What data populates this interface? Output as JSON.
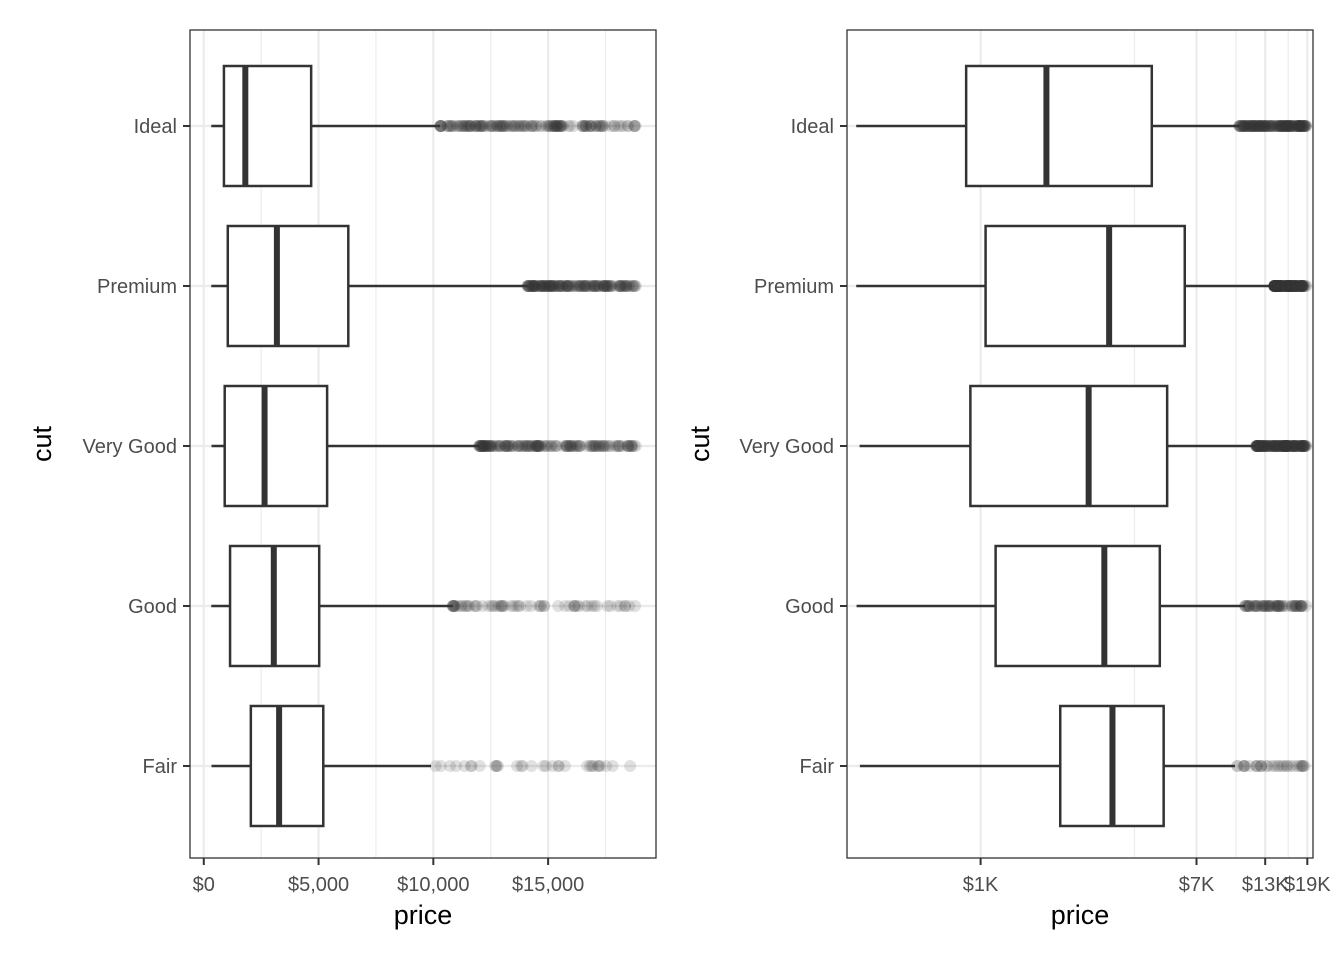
{
  "chart_data": [
    {
      "type": "boxplot",
      "orientation": "horizontal",
      "xlabel": "price",
      "ylabel": "cut",
      "x_scale": "linear",
      "xlim": [
        -600,
        19700
      ],
      "x_ticks": [
        0,
        5000,
        10000,
        15000
      ],
      "x_tick_labels": [
        "$0",
        "$5,000",
        "$10,000",
        "$15,000"
      ],
      "x_minor_ticks": [
        2500,
        7500,
        12500,
        17500
      ],
      "grid": true,
      "categories": [
        "Ideal",
        "Premium",
        "Very Good",
        "Good",
        "Fair"
      ],
      "boxes": [
        {
          "category": "Ideal",
          "min": 326,
          "q1": 878,
          "median": 1810,
          "q3": 4678,
          "max": 10300,
          "outliers_from": 10300,
          "outliers_to": 18806
        },
        {
          "category": "Premium",
          "min": 326,
          "q1": 1046,
          "median": 3185,
          "q3": 6296,
          "max": 14100,
          "outliers_from": 14100,
          "outliers_to": 18823
        },
        {
          "category": "Very Good",
          "min": 336,
          "q1": 912,
          "median": 2648,
          "q3": 5373,
          "max": 12000,
          "outliers_from": 12000,
          "outliers_to": 18818
        },
        {
          "category": "Good",
          "min": 327,
          "q1": 1145,
          "median": 3050,
          "q3": 5028,
          "max": 10850,
          "outliers_from": 10850,
          "outliers_to": 18788
        },
        {
          "category": "Fair",
          "min": 337,
          "q1": 2050,
          "median": 3282,
          "q3": 5206,
          "max": 9900,
          "outliers_from": 10100,
          "outliers_to": 18574
        }
      ]
    },
    {
      "type": "boxplot",
      "orientation": "horizontal",
      "xlabel": "price",
      "ylabel": "cut",
      "x_scale": "log10",
      "xlim": [
        300,
        20000
      ],
      "x_ticks": [
        1000,
        7000,
        13000,
        19000
      ],
      "x_tick_labels": [
        "$1K",
        "$7K",
        "$13K",
        "$19K"
      ],
      "x_minor_ticks": [
        4000,
        10000,
        16000
      ],
      "grid": true,
      "categories": [
        "Ideal",
        "Premium",
        "Very Good",
        "Good",
        "Fair"
      ],
      "boxes": [
        {
          "category": "Ideal",
          "min": 326,
          "q1": 878,
          "median": 1810,
          "q3": 4678,
          "max": 10300,
          "outliers_from": 10300,
          "outliers_to": 18806
        },
        {
          "category": "Premium",
          "min": 326,
          "q1": 1046,
          "median": 3185,
          "q3": 6296,
          "max": 14100,
          "outliers_from": 14100,
          "outliers_to": 18823
        },
        {
          "category": "Very Good",
          "min": 336,
          "q1": 912,
          "median": 2648,
          "q3": 5373,
          "max": 12000,
          "outliers_from": 12000,
          "outliers_to": 18818
        },
        {
          "category": "Good",
          "min": 327,
          "q1": 1145,
          "median": 3050,
          "q3": 5028,
          "max": 10850,
          "outliers_from": 10850,
          "outliers_to": 18788
        },
        {
          "category": "Fair",
          "min": 337,
          "q1": 2050,
          "median": 3282,
          "q3": 5206,
          "max": 9900,
          "outliers_from": 10100,
          "outliers_to": 18574
        }
      ]
    }
  ]
}
